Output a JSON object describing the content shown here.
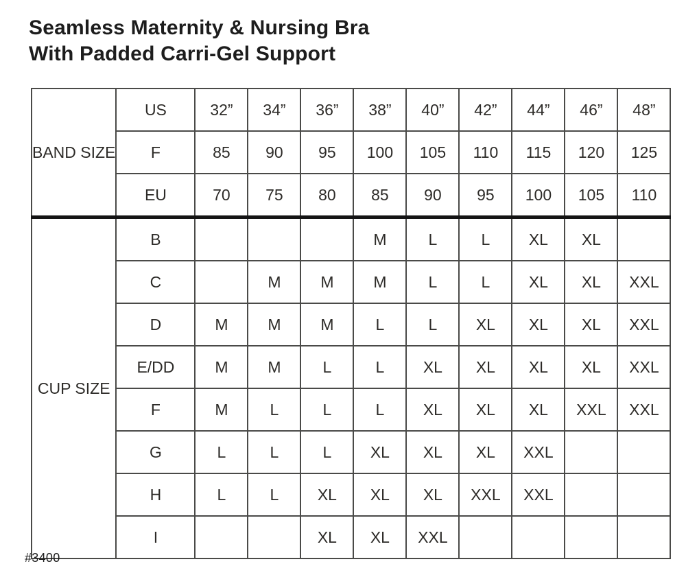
{
  "title": {
    "line1": "Seamless Maternity & Nursing Bra",
    "line2": "With Padded Carri-Gel Support"
  },
  "footer": {
    "style_number": "#3400"
  },
  "colors": {
    "header_blue": "#84afc1",
    "key_text": "#1e2f3a",
    "cell_text": "#2d2b28",
    "border": "#4a4a48",
    "divider": "#141414",
    "size_m": "#e4e2de",
    "size_l": "#cecac4",
    "size_xl": "#b9b5ae",
    "size_xxl": "#9d9992",
    "empty_tint": "#f2f1ee",
    "empty_white": "#ffffff"
  },
  "chart_data": {
    "type": "table",
    "title": "Seamless Maternity & Nursing Bra With Padded Carri-Gel Support",
    "size_values": [
      "M",
      "L",
      "XL",
      "XXL"
    ],
    "band_section": {
      "label": "BAND SIZE",
      "rows": [
        {
          "key": "US",
          "values": [
            "32”",
            "34”",
            "36”",
            "38”",
            "40”",
            "42”",
            "44”",
            "46”",
            "48”"
          ]
        },
        {
          "key": "F",
          "values": [
            "85",
            "90",
            "95",
            "100",
            "105",
            "110",
            "115",
            "120",
            "125"
          ]
        },
        {
          "key": "EU",
          "values": [
            "70",
            "75",
            "80",
            "85",
            "90",
            "95",
            "100",
            "105",
            "110"
          ]
        }
      ]
    },
    "cup_section": {
      "label": "CUP SIZE",
      "rows": [
        {
          "key": "B",
          "cells": [
            {
              "v": "",
              "s": "tint"
            },
            {
              "v": "",
              "s": "tint"
            },
            {
              "v": "",
              "s": "none"
            },
            {
              "v": "M",
              "s": "m"
            },
            {
              "v": "L",
              "s": "l"
            },
            {
              "v": "L",
              "s": "l"
            },
            {
              "v": "XL",
              "s": "xl"
            },
            {
              "v": "XL",
              "s": "xl"
            },
            {
              "v": "",
              "s": "none"
            }
          ]
        },
        {
          "key": "C",
          "cells": [
            {
              "v": "",
              "s": "tint"
            },
            {
              "v": "M",
              "s": "m"
            },
            {
              "v": "M",
              "s": "m"
            },
            {
              "v": "M",
              "s": "m"
            },
            {
              "v": "L",
              "s": "l"
            },
            {
              "v": "L",
              "s": "l"
            },
            {
              "v": "XL",
              "s": "xl"
            },
            {
              "v": "XL",
              "s": "xl"
            },
            {
              "v": "XXL",
              "s": "xxl"
            }
          ]
        },
        {
          "key": "D",
          "cells": [
            {
              "v": "M",
              "s": "m"
            },
            {
              "v": "M",
              "s": "m"
            },
            {
              "v": "M",
              "s": "m"
            },
            {
              "v": "L",
              "s": "l"
            },
            {
              "v": "L",
              "s": "l"
            },
            {
              "v": "XL",
              "s": "xl"
            },
            {
              "v": "XL",
              "s": "xl"
            },
            {
              "v": "XL",
              "s": "xl"
            },
            {
              "v": "XXL",
              "s": "xxl"
            }
          ]
        },
        {
          "key": "E/DD",
          "cells": [
            {
              "v": "M",
              "s": "m"
            },
            {
              "v": "M",
              "s": "m"
            },
            {
              "v": "L",
              "s": "l"
            },
            {
              "v": "L",
              "s": "l"
            },
            {
              "v": "XL",
              "s": "xl"
            },
            {
              "v": "XL",
              "s": "xl"
            },
            {
              "v": "XL",
              "s": "xl"
            },
            {
              "v": "XL",
              "s": "xl"
            },
            {
              "v": "XXL",
              "s": "xxl"
            }
          ]
        },
        {
          "key": "F",
          "cells": [
            {
              "v": "M",
              "s": "m"
            },
            {
              "v": "L",
              "s": "l"
            },
            {
              "v": "L",
              "s": "l"
            },
            {
              "v": "L",
              "s": "l"
            },
            {
              "v": "XL",
              "s": "xl"
            },
            {
              "v": "XL",
              "s": "xl"
            },
            {
              "v": "XL",
              "s": "xl"
            },
            {
              "v": "XXL",
              "s": "xxl"
            },
            {
              "v": "XXL",
              "s": "xxl"
            }
          ]
        },
        {
          "key": "G",
          "cells": [
            {
              "v": "L",
              "s": "l"
            },
            {
              "v": "L",
              "s": "l"
            },
            {
              "v": "L",
              "s": "l"
            },
            {
              "v": "XL",
              "s": "xl"
            },
            {
              "v": "XL",
              "s": "xl"
            },
            {
              "v": "XL",
              "s": "xl"
            },
            {
              "v": "XXL",
              "s": "xxl"
            },
            {
              "v": "",
              "s": "none"
            },
            {
              "v": "",
              "s": "none"
            }
          ]
        },
        {
          "key": "H",
          "cells": [
            {
              "v": "L",
              "s": "l"
            },
            {
              "v": "L",
              "s": "l"
            },
            {
              "v": "XL",
              "s": "xl"
            },
            {
              "v": "XL",
              "s": "xl"
            },
            {
              "v": "XL",
              "s": "xl"
            },
            {
              "v": "XXL",
              "s": "xxl"
            },
            {
              "v": "XXL",
              "s": "xxl"
            },
            {
              "v": "",
              "s": "none"
            },
            {
              "v": "",
              "s": "none"
            }
          ]
        },
        {
          "key": "I",
          "cells": [
            {
              "v": "",
              "s": "none"
            },
            {
              "v": "",
              "s": "none"
            },
            {
              "v": "XL",
              "s": "xl"
            },
            {
              "v": "XL",
              "s": "xl"
            },
            {
              "v": "XXL",
              "s": "xxl"
            },
            {
              "v": "",
              "s": "none"
            },
            {
              "v": "",
              "s": "none"
            },
            {
              "v": "",
              "s": "none"
            },
            {
              "v": "",
              "s": "none"
            }
          ]
        }
      ]
    }
  }
}
